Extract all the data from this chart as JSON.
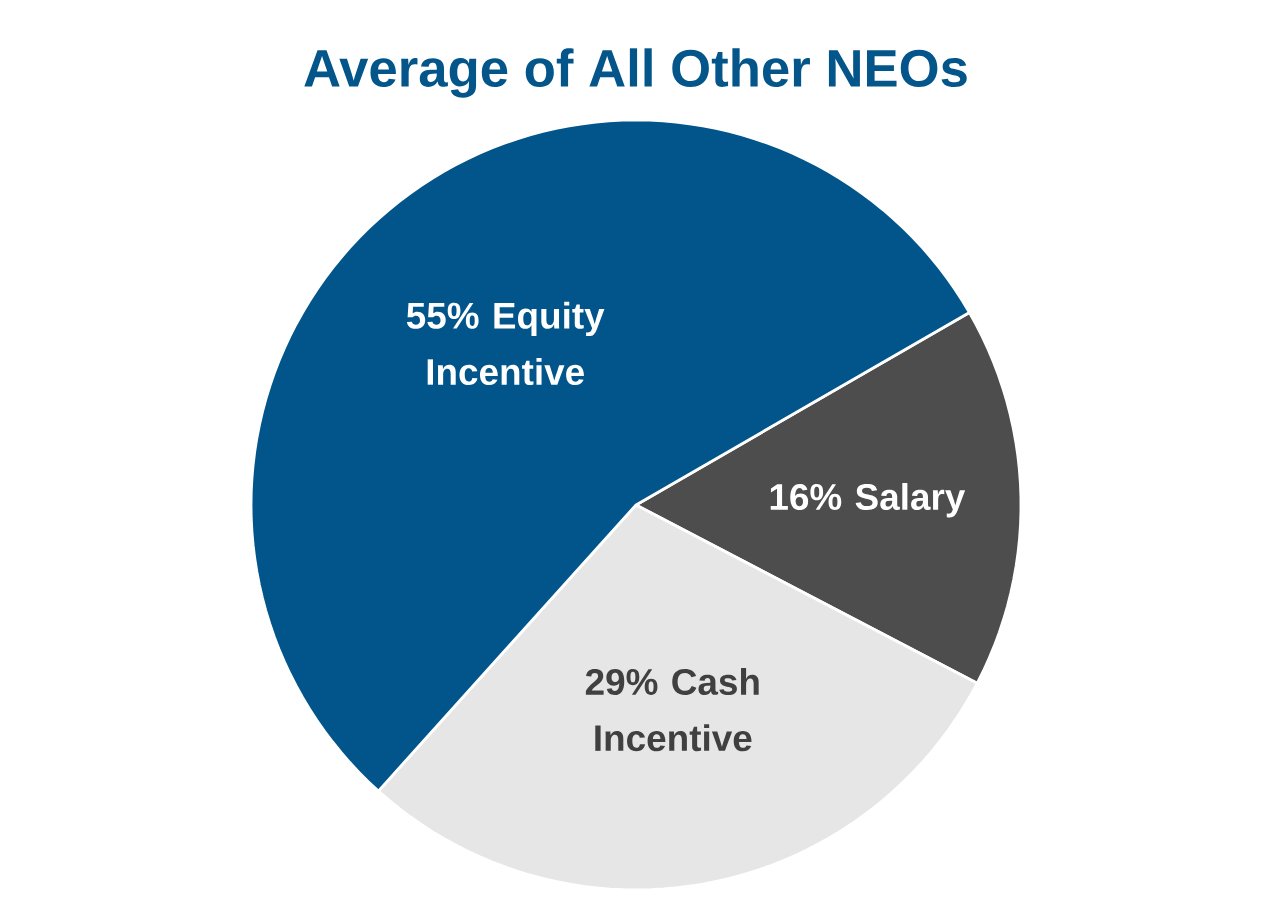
{
  "chart_data": {
    "type": "pie",
    "title": "Average of All Other NEOs",
    "categories": [
      "Equity Incentive",
      "Salary",
      "Cash Incentive"
    ],
    "values": [
      55,
      16,
      29
    ],
    "value_labels": [
      "55%",
      "16%",
      "29%"
    ],
    "colors": [
      "#02558a",
      "#4d4d4d",
      "#e6e6e6"
    ]
  }
}
